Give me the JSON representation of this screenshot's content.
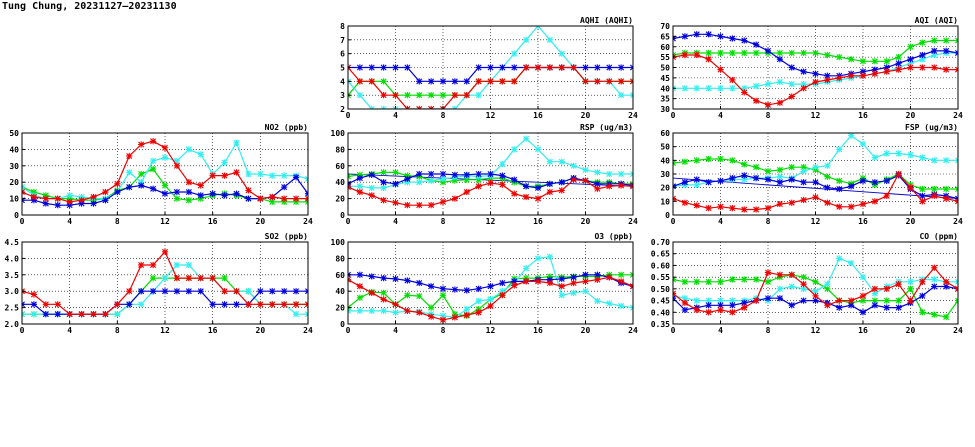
{
  "title": "Tung Chung, 20231127–20231130",
  "colors": {
    "green": "#00dd00",
    "cyan": "#33eeee",
    "blue": "#0000dd",
    "red": "#ee0000",
    "trend": "#0000cc"
  },
  "chart_data": [
    {
      "id": "aqhi",
      "type": "line",
      "title": "AQHI (AQHI)",
      "ylim": [
        2,
        8
      ],
      "yticks": [
        2,
        3,
        4,
        5,
        6,
        7,
        8
      ],
      "xlim": [
        0,
        24
      ],
      "xticks": [
        0,
        4,
        8,
        12,
        16,
        20,
        24
      ],
      "grid": true,
      "series": [
        {
          "color": "green",
          "values": [
            3,
            4,
            4,
            4,
            3,
            3,
            3,
            3,
            3,
            3,
            3,
            4,
            4,
            4,
            4,
            5,
            5,
            5,
            5,
            5,
            4,
            4,
            4,
            4,
            4
          ]
        },
        {
          "color": "cyan",
          "values": [
            4,
            3,
            2,
            2,
            2,
            2,
            2,
            2,
            2,
            2,
            3,
            3,
            4,
            5,
            6,
            7,
            8,
            7,
            6,
            5,
            4,
            4,
            4,
            3,
            3
          ]
        },
        {
          "color": "blue",
          "values": [
            5,
            5,
            5,
            5,
            5,
            5,
            4,
            4,
            4,
            4,
            4,
            5,
            5,
            5,
            5,
            5,
            5,
            5,
            5,
            5,
            5,
            5,
            5,
            5,
            5
          ]
        },
        {
          "color": "red",
          "values": [
            5,
            4,
            4,
            3,
            3,
            2,
            2,
            2,
            2,
            3,
            3,
            4,
            4,
            4,
            4,
            5,
            5,
            5,
            5,
            5,
            4,
            4,
            4,
            4,
            4
          ]
        }
      ]
    },
    {
      "id": "aqi",
      "type": "line",
      "title": "AQI (AQI)",
      "ylim": [
        30,
        70
      ],
      "yticks": [
        30,
        35,
        40,
        45,
        50,
        55,
        60,
        65,
        70
      ],
      "xlim": [
        0,
        24
      ],
      "xticks": [
        0,
        4,
        8,
        12,
        16,
        20,
        24
      ],
      "grid": true,
      "series": [
        {
          "color": "green",
          "values": [
            56,
            57,
            57,
            57,
            57,
            57,
            57,
            57,
            57,
            57,
            57,
            57,
            57,
            56,
            55,
            54,
            53,
            53,
            53,
            55,
            60,
            62,
            63,
            63,
            63
          ]
        },
        {
          "color": "cyan",
          "values": [
            40,
            40,
            40,
            40,
            40,
            40,
            40,
            41,
            42,
            43,
            42,
            42,
            42,
            43,
            44,
            45,
            46,
            47,
            48,
            50,
            52,
            54,
            56,
            57,
            57
          ]
        },
        {
          "color": "blue",
          "values": [
            64,
            65,
            66,
            66,
            65,
            64,
            63,
            61,
            58,
            54,
            50,
            48,
            47,
            46,
            46,
            47,
            48,
            49,
            50,
            52,
            54,
            56,
            58,
            58,
            57
          ]
        },
        {
          "color": "red",
          "values": [
            55,
            56,
            56,
            54,
            49,
            44,
            38,
            34,
            32,
            33,
            36,
            40,
            43,
            44,
            45,
            46,
            46,
            47,
            48,
            49,
            50,
            50,
            50,
            49,
            49
          ]
        }
      ]
    },
    {
      "id": "no2",
      "type": "line",
      "title": "NO2 (ppb)",
      "ylim": [
        0,
        50
      ],
      "yticks": [
        0,
        10,
        20,
        30,
        40,
        50
      ],
      "xlim": [
        0,
        24
      ],
      "xticks": [
        0,
        4,
        8,
        12,
        16,
        20,
        24
      ],
      "grid": true,
      "series": [
        {
          "color": "green",
          "values": [
            17,
            14,
            12,
            10,
            10,
            9,
            9,
            10,
            15,
            17,
            25,
            28,
            18,
            10,
            9,
            10,
            12,
            13,
            12,
            10,
            10,
            8,
            8,
            8,
            8
          ]
        },
        {
          "color": "cyan",
          "values": [
            17,
            12,
            10,
            10,
            12,
            11,
            10,
            10,
            14,
            26,
            20,
            33,
            35,
            33,
            40,
            37,
            25,
            32,
            44,
            25,
            25,
            24,
            24,
            24,
            22
          ]
        },
        {
          "color": "blue",
          "values": [
            9,
            9,
            7,
            6,
            6,
            7,
            7,
            9,
            14,
            17,
            18,
            16,
            13,
            14,
            14,
            12,
            13,
            12,
            13,
            10,
            10,
            11,
            17,
            23,
            13
          ]
        },
        {
          "color": "red",
          "values": [
            14,
            11,
            10,
            10,
            8,
            9,
            11,
            14,
            19,
            36,
            43,
            45,
            41,
            30,
            20,
            18,
            24,
            24,
            26,
            15,
            10,
            11,
            10,
            10,
            10
          ]
        }
      ]
    },
    {
      "id": "rsp",
      "type": "line",
      "title": "RSP (ug/m3)",
      "ylim": [
        0,
        100
      ],
      "yticks": [
        0,
        20,
        40,
        60,
        80,
        100
      ],
      "xlim": [
        0,
        24
      ],
      "xticks": [
        0,
        4,
        8,
        12,
        16,
        20,
        24
      ],
      "grid": true,
      "trend": {
        "x": [
          0,
          24
        ],
        "values": [
          50,
          35
        ]
      },
      "series": [
        {
          "color": "green",
          "values": [
            47,
            49,
            50,
            52,
            52,
            48,
            47,
            42,
            40,
            42,
            43,
            43,
            45,
            45,
            40,
            35,
            35,
            38,
            40,
            45,
            42,
            40,
            40,
            38,
            38
          ]
        },
        {
          "color": "cyan",
          "values": [
            35,
            35,
            33,
            33,
            37,
            40,
            40,
            42,
            44,
            46,
            48,
            47,
            48,
            62,
            80,
            93,
            80,
            65,
            65,
            60,
            55,
            52,
            50,
            50,
            50
          ]
        },
        {
          "color": "blue",
          "values": [
            38,
            45,
            49,
            40,
            38,
            44,
            50,
            50,
            50,
            49,
            49,
            50,
            50,
            48,
            43,
            35,
            33,
            38,
            40,
            45,
            42,
            38,
            38,
            38,
            36
          ]
        },
        {
          "color": "red",
          "values": [
            34,
            28,
            24,
            18,
            15,
            12,
            12,
            12,
            16,
            20,
            28,
            35,
            39,
            37,
            26,
            22,
            20,
            28,
            30,
            43,
            42,
            32,
            35,
            36,
            35
          ]
        }
      ]
    },
    {
      "id": "fsp",
      "type": "line",
      "title": "FSP (ug/m3)",
      "ylim": [
        0,
        60
      ],
      "yticks": [
        0,
        10,
        20,
        30,
        40,
        50,
        60
      ],
      "xlim": [
        0,
        24
      ],
      "xticks": [
        0,
        4,
        8,
        12,
        16,
        20,
        24
      ],
      "grid": true,
      "trend": {
        "x": [
          0,
          24
        ],
        "values": [
          27,
          12
        ]
      },
      "series": [
        {
          "color": "green",
          "values": [
            38,
            39,
            40,
            41,
            41,
            40,
            37,
            35,
            32,
            33,
            35,
            35,
            33,
            28,
            25,
            23,
            27,
            22,
            26,
            30,
            22,
            19,
            19,
            19,
            19
          ]
        },
        {
          "color": "cyan",
          "values": [
            21,
            22,
            22,
            24,
            25,
            26,
            26,
            27,
            27,
            28,
            27,
            32,
            35,
            36,
            48,
            58,
            52,
            42,
            45,
            45,
            44,
            42,
            40,
            40,
            40
          ]
        },
        {
          "color": "blue",
          "values": [
            21,
            24,
            26,
            24,
            25,
            27,
            29,
            27,
            26,
            24,
            26,
            24,
            24,
            20,
            19,
            21,
            25,
            24,
            25,
            29,
            19,
            14,
            15,
            14,
            12
          ]
        },
        {
          "color": "red",
          "values": [
            12,
            9,
            7,
            5,
            6,
            5,
            4,
            4,
            5,
            8,
            9,
            11,
            13,
            9,
            6,
            6,
            8,
            10,
            14,
            30,
            20,
            10,
            14,
            12,
            10
          ]
        }
      ]
    },
    {
      "id": "so2",
      "type": "line",
      "title": "SO2 (ppb)",
      "ylim": [
        2.0,
        4.5
      ],
      "yticks": [
        2.0,
        2.5,
        3.0,
        3.5,
        4.0,
        4.5
      ],
      "xlim": [
        0,
        24
      ],
      "xticks": [
        0,
        4,
        8,
        12,
        16,
        20,
        24
      ],
      "grid": true,
      "series": [
        {
          "color": "green",
          "values": [
            2.3,
            2.3,
            2.3,
            2.3,
            2.3,
            2.3,
            2.3,
            2.3,
            2.3,
            2.6,
            3.0,
            3.4,
            3.4,
            3.4,
            3.4,
            3.4,
            3.4,
            3.4,
            3.0,
            3.0,
            2.6,
            2.6,
            2.6,
            2.6,
            2.6
          ]
        },
        {
          "color": "cyan",
          "values": [
            2.3,
            2.3,
            2.3,
            2.3,
            2.3,
            2.3,
            2.3,
            2.3,
            2.3,
            2.6,
            2.6,
            3.0,
            3.4,
            3.8,
            3.8,
            3.4,
            3.4,
            3.0,
            3.0,
            3.0,
            2.6,
            2.6,
            2.6,
            2.3,
            2.3
          ]
        },
        {
          "color": "blue",
          "values": [
            2.6,
            2.6,
            2.3,
            2.3,
            2.3,
            2.3,
            2.3,
            2.3,
            2.6,
            2.6,
            3.0,
            3.0,
            3.0,
            3.0,
            3.0,
            3.0,
            2.6,
            2.6,
            2.6,
            2.6,
            3.0,
            3.0,
            3.0,
            3.0,
            3.0
          ]
        },
        {
          "color": "red",
          "values": [
            3.0,
            2.9,
            2.6,
            2.6,
            2.3,
            2.3,
            2.3,
            2.3,
            2.6,
            3.0,
            3.8,
            3.8,
            4.2,
            3.4,
            3.4,
            3.4,
            3.4,
            3.0,
            3.0,
            2.6,
            2.6,
            2.6,
            2.6,
            2.6,
            2.6
          ]
        }
      ]
    },
    {
      "id": "o3",
      "type": "line",
      "title": "O3 (ppb)",
      "ylim": [
        0,
        100
      ],
      "yticks": [
        0,
        20,
        40,
        60,
        80,
        100
      ],
      "xlim": [
        0,
        24
      ],
      "xticks": [
        0,
        4,
        8,
        12,
        16,
        20,
        24
      ],
      "grid": true,
      "series": [
        {
          "color": "green",
          "values": [
            20,
            32,
            39,
            38,
            24,
            35,
            34,
            20,
            35,
            12,
            10,
            18,
            30,
            37,
            55,
            56,
            56,
            58,
            57,
            58,
            58,
            58,
            60,
            60,
            60
          ]
        },
        {
          "color": "cyan",
          "values": [
            16,
            16,
            16,
            16,
            14,
            16,
            15,
            12,
            10,
            8,
            18,
            28,
            30,
            40,
            50,
            68,
            80,
            82,
            35,
            38,
            40,
            28,
            25,
            22,
            20
          ]
        },
        {
          "color": "blue",
          "values": [
            60,
            60,
            58,
            56,
            55,
            53,
            50,
            46,
            43,
            42,
            41,
            43,
            46,
            50,
            52,
            52,
            54,
            54,
            55,
            57,
            60,
            60,
            57,
            50,
            46
          ]
        },
        {
          "color": "red",
          "values": [
            54,
            46,
            38,
            30,
            24,
            16,
            14,
            9,
            5,
            8,
            11,
            14,
            22,
            35,
            47,
            52,
            52,
            50,
            46,
            50,
            52,
            54,
            57,
            52,
            46
          ]
        }
      ]
    },
    {
      "id": "co",
      "type": "line",
      "title": "CO (ppm)",
      "ylim": [
        0.35,
        0.7
      ],
      "yticks": [
        0.35,
        0.4,
        0.45,
        0.5,
        0.55,
        0.6,
        0.65,
        0.7
      ],
      "xlim": [
        0,
        24
      ],
      "xticks": [
        0,
        4,
        8,
        12,
        16,
        20,
        24
      ],
      "grid": true,
      "series": [
        {
          "color": "green",
          "values": [
            0.54,
            0.53,
            0.53,
            0.53,
            0.53,
            0.54,
            0.54,
            0.54,
            0.53,
            0.55,
            0.56,
            0.55,
            0.53,
            0.5,
            0.45,
            0.44,
            0.45,
            0.45,
            0.45,
            0.45,
            0.5,
            0.4,
            0.39,
            0.38,
            0.45
          ]
        },
        {
          "color": "cyan",
          "values": [
            0.47,
            0.46,
            0.45,
            0.45,
            0.45,
            0.45,
            0.45,
            0.46,
            0.45,
            0.5,
            0.51,
            0.5,
            0.49,
            0.52,
            0.63,
            0.61,
            0.55,
            0.48,
            0.51,
            0.53,
            0.53,
            0.54,
            0.54,
            0.53,
            0.53
          ]
        },
        {
          "color": "blue",
          "values": [
            0.46,
            0.41,
            0.42,
            0.43,
            0.43,
            0.43,
            0.44,
            0.45,
            0.46,
            0.46,
            0.43,
            0.45,
            0.45,
            0.44,
            0.42,
            0.43,
            0.4,
            0.43,
            0.42,
            0.42,
            0.44,
            0.47,
            0.51,
            0.51,
            0.5
          ]
        },
        {
          "color": "red",
          "values": [
            0.48,
            0.44,
            0.41,
            0.4,
            0.41,
            0.4,
            0.42,
            0.45,
            0.57,
            0.56,
            0.56,
            0.52,
            0.47,
            0.43,
            0.45,
            0.45,
            0.47,
            0.5,
            0.5,
            0.52,
            0.45,
            0.53,
            0.59,
            0.53,
            0.5
          ]
        }
      ]
    }
  ]
}
